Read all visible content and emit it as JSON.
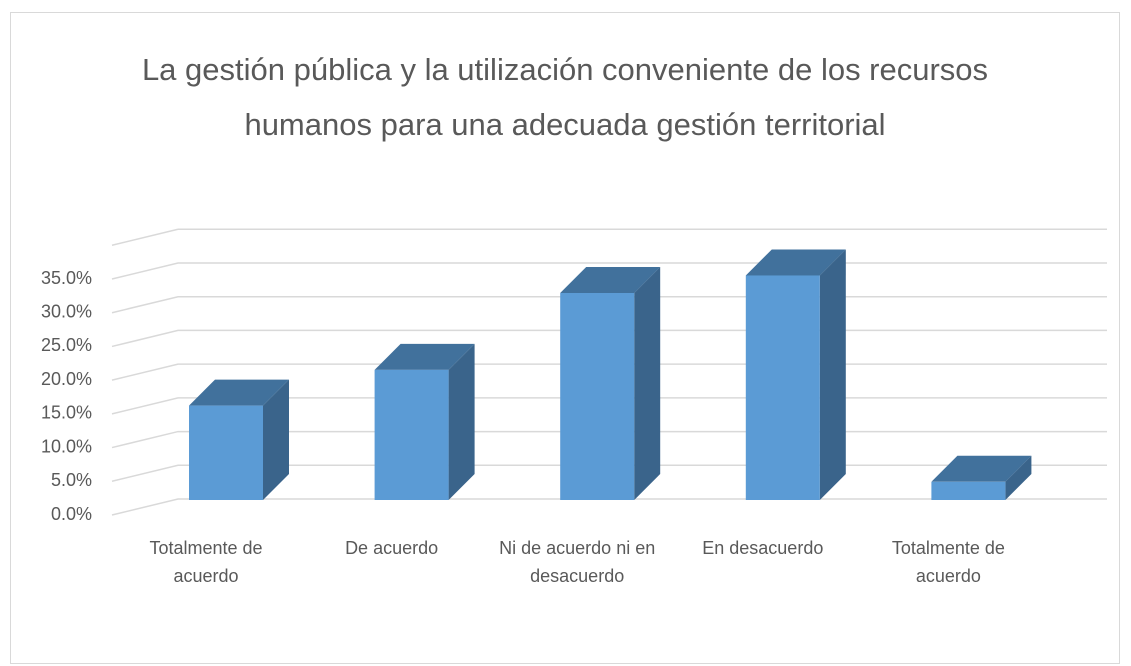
{
  "chart_data": {
    "type": "bar3d",
    "title": "La gestión pública y la utilización conveniente de los recursos humanos para una adecuada gestión territorial",
    "categories": [
      "Totalmente de acuerdo",
      "De acuerdo",
      "Ni de acuerdo ni en desacuerdo",
      "En desacuerdo",
      "Totalmente de acuerdo"
    ],
    "values": [
      14.0,
      19.3,
      30.7,
      33.3,
      2.7
    ],
    "color": "#5b9bd5",
    "ylim": [
      0,
      40
    ],
    "yticks": [
      {
        "value": 0,
        "label": "0.0%"
      },
      {
        "value": 5,
        "label": "5.0%"
      },
      {
        "value": 10,
        "label": "10.0%"
      },
      {
        "value": 15,
        "label": "15.0%"
      },
      {
        "value": 20,
        "label": "20.0%"
      },
      {
        "value": 25,
        "label": "25.0%"
      },
      {
        "value": 30,
        "label": "30.0%"
      },
      {
        "value": 35,
        "label": "35.0%"
      }
    ],
    "grid": true
  }
}
